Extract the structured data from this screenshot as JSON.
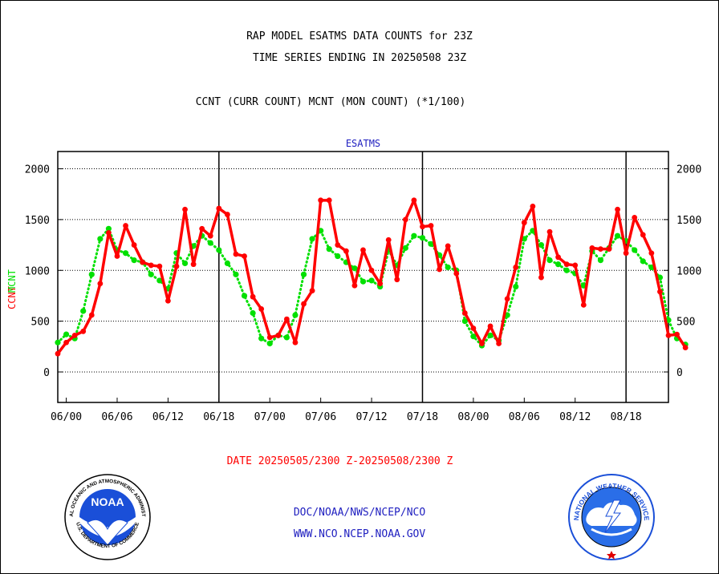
{
  "header": {
    "title_line1": "RAP MODEL ESATMS DATA COUNTS for 23Z",
    "title_line2": "TIME SERIES ENDING IN 20250508 23Z",
    "subtitle": "CCNT (CURR COUNT) MCNT (MON COUNT) (*1/100)"
  },
  "chart_data": {
    "type": "line",
    "panel_label": "ESATMS",
    "ylabel_ccnt": "CCNT",
    "ylabel_mcnt": "MCNT",
    "xlabel": "DATE 20250505/2300 Z-20250508/2300 Z",
    "ylim": [
      -300,
      2170
    ],
    "xlim": [
      -1,
      71
    ],
    "yticks": [
      0,
      500,
      1000,
      1500,
      2000
    ],
    "xticks": [
      {
        "x": 0,
        "label": "06/00"
      },
      {
        "x": 6,
        "label": "06/06"
      },
      {
        "x": 12,
        "label": "06/12"
      },
      {
        "x": 18,
        "label": "06/18"
      },
      {
        "x": 24,
        "label": "07/00"
      },
      {
        "x": 30,
        "label": "07/06"
      },
      {
        "x": 36,
        "label": "07/12"
      },
      {
        "x": 42,
        "label": "07/18"
      },
      {
        "x": 48,
        "label": "08/00"
      },
      {
        "x": 54,
        "label": "08/06"
      },
      {
        "x": 60,
        "label": "08/12"
      },
      {
        "x": 66,
        "label": "08/18"
      }
    ],
    "day_separators": [
      18,
      42,
      66
    ],
    "grid": true,
    "series": [
      {
        "name": "CCNT",
        "color": "#ff0000",
        "start_x": -1,
        "values": [
          180,
          290,
          360,
          400,
          560,
          870,
          1370,
          1140,
          1440,
          1250,
          1080,
          1050,
          1040,
          700,
          1040,
          1600,
          1060,
          1410,
          1340,
          1610,
          1550,
          1160,
          1140,
          740,
          620,
          340,
          360,
          520,
          290,
          670,
          800,
          1690,
          1690,
          1250,
          1190,
          850,
          1200,
          1000,
          870,
          1300,
          910,
          1500,
          1690,
          1430,
          1440,
          1010,
          1240,
          970,
          580,
          430,
          280,
          450,
          280,
          720,
          1030,
          1470,
          1630,
          930,
          1380,
          1130,
          1060,
          1050,
          660,
          1220,
          1210,
          1210,
          1600,
          1170,
          1520,
          1350,
          1170,
          790,
          360,
          370,
          240
        ]
      },
      {
        "name": "MCNT",
        "color": "#00e000",
        "start_x": -1,
        "values": [
          290,
          370,
          330,
          600,
          960,
          1310,
          1410,
          1200,
          1170,
          1100,
          1080,
          960,
          900,
          820,
          1170,
          1070,
          1240,
          1340,
          1270,
          1200,
          1070,
          960,
          750,
          580,
          330,
          280,
          360,
          340,
          560,
          960,
          1310,
          1390,
          1210,
          1140,
          1080,
          1020,
          890,
          900,
          840,
          1200,
          1050,
          1220,
          1340,
          1320,
          1260,
          1150,
          1030,
          1000,
          500,
          350,
          260,
          360,
          310,
          560,
          840,
          1310,
          1390,
          1250,
          1100,
          1060,
          1000,
          970,
          850,
          1190,
          1100,
          1220,
          1340,
          1290,
          1200,
          1090,
          1030,
          930,
          510,
          330,
          270
        ]
      }
    ]
  },
  "footer": {
    "link1": "DOC/NOAA/NWS/NCEP/NCO",
    "link2": "WWW.NCO.NCEP.NOAA.GOV"
  },
  "logos": {
    "left_name": "NOAA",
    "left_ring": "NATIONAL OCEANIC AND ATMOSPHERIC ADMINISTRATION",
    "left_ring_bottom": "U.S. DEPARTMENT OF COMMERCE",
    "right_ring": "NATIONAL WEATHER SERVICE"
  },
  "colors": {
    "ccnt": "#ff0000",
    "mcnt": "#00e000",
    "panel_label": "#2020c0",
    "footer": "#2020c0",
    "date": "#ff0000"
  }
}
